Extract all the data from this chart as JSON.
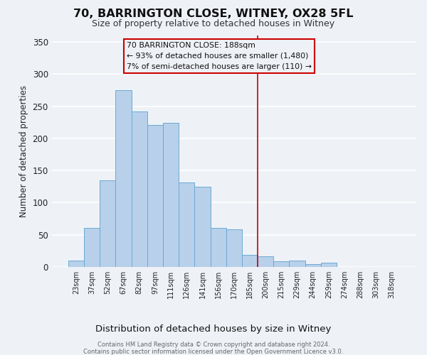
{
  "title": "70, BARRINGTON CLOSE, WITNEY, OX28 5FL",
  "subtitle": "Size of property relative to detached houses in Witney",
  "xlabel": "Distribution of detached houses by size in Witney",
  "ylabel": "Number of detached properties",
  "bar_labels": [
    "23sqm",
    "37sqm",
    "52sqm",
    "67sqm",
    "82sqm",
    "97sqm",
    "111sqm",
    "126sqm",
    "141sqm",
    "156sqm",
    "170sqm",
    "185sqm",
    "200sqm",
    "215sqm",
    "229sqm",
    "244sqm",
    "259sqm",
    "274sqm",
    "288sqm",
    "303sqm",
    "318sqm"
  ],
  "bar_heights": [
    10,
    60,
    135,
    275,
    242,
    221,
    224,
    131,
    125,
    60,
    58,
    19,
    16,
    9,
    10,
    4,
    6,
    0,
    0,
    0,
    0
  ],
  "bar_color": "#b8d0ea",
  "bar_edge_color": "#6aaad4",
  "vline_index": 11,
  "vline_color": "#cc0000",
  "annotation_line1": "70 BARRINGTON CLOSE: 188sqm",
  "annotation_line2": "← 93% of detached houses are smaller (1,480)",
  "annotation_line3": "7% of semi-detached houses are larger (110) →",
  "annotation_box_color": "#cc0000",
  "annotation_bg": "#eef2f7",
  "ylim": [
    0,
    360
  ],
  "yticks": [
    0,
    50,
    100,
    150,
    200,
    250,
    300,
    350
  ],
  "footer_line1": "Contains HM Land Registry data © Crown copyright and database right 2024.",
  "footer_line2": "Contains public sector information licensed under the Open Government Licence v3.0.",
  "bg_color": "#eef2f7",
  "grid_color": "#ffffff",
  "title_fontsize": 11.5,
  "subtitle_fontsize": 9,
  "xlabel_fontsize": 9.5,
  "ylabel_fontsize": 8.5,
  "footer_fontsize": 6.0
}
